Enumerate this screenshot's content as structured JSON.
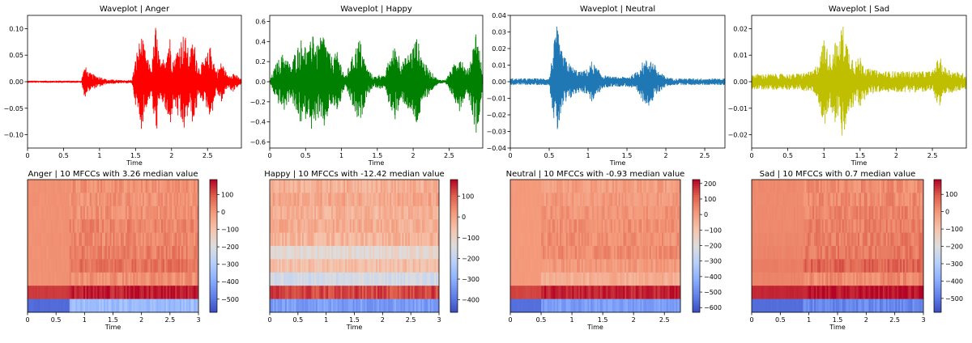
{
  "chart_data": [
    {
      "type": "line",
      "title": "Waveplot | Anger",
      "xlabel": "Time",
      "ylabel": "",
      "color": "#ff0000",
      "xlim": [
        0,
        2.97
      ],
      "ylim": [
        -0.125,
        0.125
      ],
      "xticks": [
        0,
        0.5,
        1,
        1.5,
        2,
        2.5
      ],
      "xtick_labels": [
        "0",
        "0.5",
        "1",
        "1.5",
        "2",
        "2.5"
      ],
      "yticks": [
        -0.1,
        -0.05,
        0.0,
        0.05,
        0.1
      ],
      "ytick_labels": [
        "−0.10",
        "−0.05",
        "0.00",
        "0.05",
        "0.10"
      ],
      "envelope": {
        "x": [
          0,
          0.75,
          0.77,
          0.8,
          0.85,
          0.95,
          1.05,
          1.1,
          1.2,
          1.3,
          1.45,
          1.52,
          1.58,
          1.65,
          1.72,
          1.78,
          1.85,
          1.92,
          1.97,
          2.03,
          2.1,
          2.18,
          2.25,
          2.3,
          2.38,
          2.45,
          2.55,
          2.62,
          2.7,
          2.78,
          2.85,
          2.92,
          2.97
        ],
        "amp": [
          0.002,
          0.002,
          0.02,
          0.03,
          0.018,
          0.012,
          0.008,
          0.004,
          0.004,
          0.003,
          0.003,
          0.06,
          0.09,
          0.05,
          0.025,
          0.11,
          0.03,
          0.06,
          0.095,
          0.04,
          0.075,
          0.095,
          0.05,
          0.085,
          0.03,
          0.04,
          0.07,
          0.02,
          0.04,
          0.01,
          0.02,
          0.01,
          0.005
        ]
      }
    },
    {
      "type": "line",
      "title": "Waveplot | Happy",
      "xlabel": "Time",
      "ylabel": "",
      "color": "#008000",
      "xlim": [
        0,
        2.97
      ],
      "ylim": [
        -0.66,
        0.66
      ],
      "xticks": [
        0,
        0.5,
        1,
        1.5,
        2,
        2.5
      ],
      "xtick_labels": [
        "0",
        "0.5",
        "1",
        "1.5",
        "2",
        "2.5"
      ],
      "yticks": [
        -0.6,
        -0.4,
        -0.2,
        0.0,
        0.2,
        0.4,
        0.6
      ],
      "ytick_labels": [
        "−0.6",
        "−0.4",
        "−0.2",
        "0.0",
        "0.2",
        "0.4",
        "0.6"
      ],
      "envelope": {
        "x": [
          0,
          0.1,
          0.2,
          0.3,
          0.35,
          0.45,
          0.55,
          0.6,
          0.65,
          0.75,
          0.85,
          0.95,
          1.05,
          1.15,
          1.25,
          1.35,
          1.45,
          1.55,
          1.6,
          1.65,
          1.75,
          1.85,
          1.95,
          2.05,
          2.15,
          2.25,
          2.35,
          2.45,
          2.55,
          2.65,
          2.75,
          2.82,
          2.88,
          2.93,
          2.97
        ],
        "amp": [
          0.01,
          0.2,
          0.3,
          0.15,
          0.3,
          0.45,
          0.3,
          0.6,
          0.35,
          0.5,
          0.25,
          0.3,
          0.05,
          0.25,
          0.45,
          0.15,
          0.05,
          0.08,
          0.05,
          0.2,
          0.38,
          0.2,
          0.3,
          0.45,
          0.2,
          0.1,
          0.02,
          0.02,
          0.15,
          0.3,
          0.1,
          0.3,
          0.55,
          0.3,
          0.05
        ]
      }
    },
    {
      "type": "line",
      "title": "Waveplot | Neutral",
      "xlabel": "Time",
      "ylabel": "",
      "color": "#1f77b4",
      "xlim": [
        0,
        2.76
      ],
      "ylim": [
        -0.04,
        0.04
      ],
      "xticks": [
        0,
        0.5,
        1,
        1.5,
        2,
        2.5
      ],
      "xtick_labels": [
        "0",
        "0.5",
        "1",
        "1.5",
        "2",
        "2.5"
      ],
      "yticks": [
        -0.04,
        -0.03,
        -0.02,
        -0.01,
        0.0,
        0.01,
        0.02,
        0.03,
        0.04
      ],
      "ytick_labels": [
        "−0.04",
        "−0.03",
        "−0.02",
        "−0.01",
        "0.00",
        "0.01",
        "0.02",
        "0.03",
        "0.04"
      ],
      "envelope": {
        "x": [
          0,
          0.5,
          0.55,
          0.6,
          0.65,
          0.7,
          0.75,
          0.8,
          0.9,
          1.0,
          1.05,
          1.1,
          1.2,
          1.3,
          1.5,
          1.6,
          1.7,
          1.8,
          1.85,
          1.9,
          1.95,
          2.0,
          2.1,
          2.76
        ],
        "amp": [
          0.002,
          0.002,
          0.02,
          0.034,
          0.02,
          0.015,
          0.012,
          0.009,
          0.006,
          0.008,
          0.013,
          0.009,
          0.004,
          0.003,
          0.003,
          0.005,
          0.012,
          0.015,
          0.011,
          0.007,
          0.005,
          0.003,
          0.002,
          0.002
        ]
      }
    },
    {
      "type": "line",
      "title": "Waveplot | Sad",
      "xlabel": "Time",
      "ylabel": "",
      "color": "#bfbf00",
      "xlim": [
        0,
        2.97
      ],
      "ylim": [
        -0.025,
        0.025
      ],
      "xticks": [
        0,
        0.5,
        1,
        1.5,
        2,
        2.5
      ],
      "xtick_labels": [
        "0",
        "0.5",
        "1",
        "1.5",
        "2",
        "2.5"
      ],
      "yticks": [
        -0.02,
        -0.01,
        0.0,
        0.01,
        0.02
      ],
      "ytick_labels": [
        "−0.02",
        "−0.01",
        "0.00",
        "0.01",
        "0.02"
      ],
      "envelope": {
        "x": [
          0,
          0.3,
          0.6,
          0.85,
          0.95,
          1.0,
          1.05,
          1.1,
          1.15,
          1.2,
          1.25,
          1.3,
          1.35,
          1.45,
          1.5,
          1.6,
          1.8,
          2.0,
          2.2,
          2.5,
          2.6,
          2.65,
          2.8,
          2.97
        ],
        "amp": [
          0.003,
          0.003,
          0.003,
          0.004,
          0.01,
          0.018,
          0.012,
          0.01,
          0.016,
          0.013,
          0.023,
          0.018,
          0.012,
          0.008,
          0.01,
          0.005,
          0.004,
          0.004,
          0.004,
          0.004,
          0.01,
          0.006,
          0.004,
          0.003
        ]
      }
    },
    {
      "type": "heatmap",
      "title": "Anger | 10 MFCCs with 3.26 median value",
      "xlabel": "Time",
      "ylabel": "",
      "xlim": [
        0,
        3
      ],
      "xticks": [
        0,
        0.5,
        1,
        1.5,
        2,
        2.5,
        3
      ],
      "xtick_labels": [
        "0",
        "0.5",
        "1",
        "1.5",
        "2",
        "2.5",
        "3"
      ],
      "colorbar": {
        "min": -575,
        "max": 185,
        "ticks": [
          100,
          0,
          -100,
          -200,
          -300,
          -400,
          -500
        ],
        "tick_labels": [
          "100",
          "0",
          "−100",
          "−200",
          "−300",
          "−400",
          "−500"
        ],
        "colormap": "coolwarm"
      },
      "onset": 0.75,
      "rows_before": [
        10,
        10,
        10,
        10,
        10,
        10,
        10,
        10,
        130,
        -520
      ],
      "rows_after": [
        8,
        5,
        10,
        30,
        25,
        40,
        60,
        10,
        160,
        -350
      ]
    },
    {
      "type": "heatmap",
      "title": "Happy | 10 MFCCs with -12.42 median value",
      "xlabel": "Time",
      "ylabel": "",
      "xlim": [
        0,
        3
      ],
      "xticks": [
        0,
        0.5,
        1,
        1.5,
        2,
        2.5,
        3
      ],
      "xtick_labels": [
        "0",
        "0.5",
        "1",
        "1.5",
        "2",
        "2.5",
        "3"
      ],
      "colorbar": {
        "min": -460,
        "max": 180,
        "ticks": [
          100,
          0,
          -100,
          -200,
          -300,
          -400
        ],
        "tick_labels": [
          "100",
          "0",
          "−100",
          "−200",
          "−300",
          "−400"
        ],
        "colormap": "coolwarm"
      },
      "onset": 0.0,
      "rows_before": [
        0,
        0,
        0,
        0,
        0,
        0,
        0,
        0,
        0,
        0
      ],
      "rows_after": [
        -20,
        -5,
        -25,
        -15,
        -30,
        -120,
        -55,
        -160,
        120,
        -330
      ]
    },
    {
      "type": "heatmap",
      "title": "Neutral | 10 MFCCs with -0.93 median value",
      "xlabel": "Time",
      "ylabel": "",
      "xlim": [
        0,
        2.76
      ],
      "xticks": [
        0,
        0.5,
        1,
        1.5,
        2,
        2.5
      ],
      "xtick_labels": [
        "0",
        "0.5",
        "1",
        "1.5",
        "2",
        "2.5"
      ],
      "colorbar": {
        "min": -630,
        "max": 225,
        "ticks": [
          200,
          100,
          0,
          -100,
          -200,
          -300,
          -400,
          -500,
          -600
        ],
        "tick_labels": [
          "200",
          "100",
          "0",
          "−100",
          "−200",
          "−300",
          "−400",
          "−500",
          "−600"
        ],
        "colormap": "coolwarm"
      },
      "onset": 0.5,
      "rows_before": [
        10,
        10,
        10,
        10,
        10,
        10,
        10,
        10,
        150,
        -560
      ],
      "rows_after": [
        0,
        10,
        20,
        30,
        30,
        40,
        10,
        -40,
        190,
        -460
      ]
    },
    {
      "type": "heatmap",
      "title": "Sad | 10 MFCCs with 0.7 median value",
      "xlabel": "Time",
      "ylabel": "",
      "xlim": [
        0,
        3
      ],
      "xticks": [
        0,
        0.5,
        1,
        1.5,
        2,
        2.5,
        3
      ],
      "xtick_labels": [
        "0",
        "0.5",
        "1",
        "1.5",
        "2",
        "2.5",
        "3"
      ],
      "colorbar": {
        "min": -580,
        "max": 185,
        "ticks": [
          100,
          0,
          -100,
          -200,
          -300,
          -400,
          -500
        ],
        "tick_labels": [
          "100",
          "0",
          "−100",
          "−200",
          "−300",
          "−400",
          "−500"
        ],
        "colormap": "coolwarm"
      },
      "onset": 0.9,
      "rows_before": [
        20,
        20,
        20,
        20,
        25,
        30,
        40,
        30,
        150,
        -520
      ],
      "rows_after": [
        15,
        20,
        30,
        35,
        40,
        50,
        80,
        20,
        170,
        -470
      ]
    }
  ]
}
